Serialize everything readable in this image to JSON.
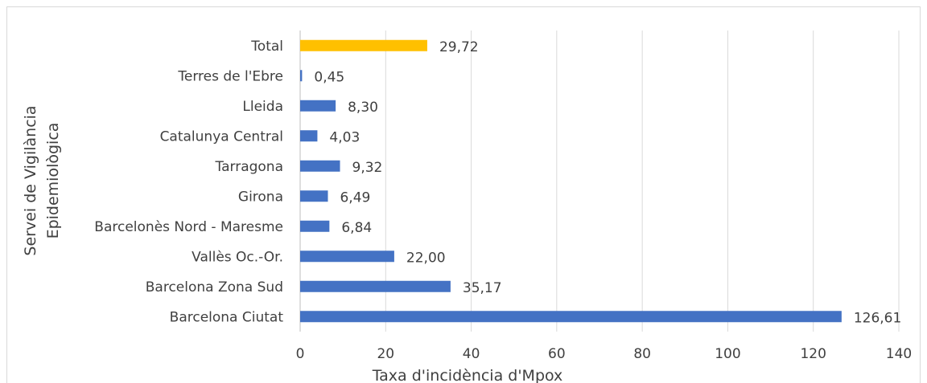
{
  "chart_data": {
    "type": "bar",
    "orientation": "horizontal",
    "xlabel": "Taxa d'incidència d'Mpox",
    "ylabel_lines": [
      "Servei de Vigilància",
      "Epidemiològica"
    ],
    "xlim": [
      0,
      140
    ],
    "xticks": [
      "0",
      "20",
      "40",
      "60",
      "80",
      "100",
      "120",
      "140"
    ],
    "grid": "vertical",
    "categories": [
      "Total",
      "Terres de l'Ebre",
      "Lleida",
      "Catalunya Central",
      "Tarragona",
      "Girona",
      "Barcelonès Nord - Maresme",
      "Vallès Oc.-Or.",
      "Barcelona Zona Sud",
      "Barcelona Ciutat"
    ],
    "values": [
      29.72,
      0.45,
      8.3,
      4.03,
      9.32,
      6.49,
      6.84,
      22.0,
      35.17,
      126.61
    ],
    "value_labels": [
      "29,72",
      "0,45",
      "8,30",
      "4,03",
      "9,32",
      "6,49",
      "6,84",
      "22,00",
      "35,17",
      "126,61"
    ],
    "colors": [
      "#ffc000",
      "#4472c4",
      "#4472c4",
      "#4472c4",
      "#4472c4",
      "#4472c4",
      "#4472c4",
      "#4472c4",
      "#4472c4",
      "#4472c4"
    ]
  }
}
